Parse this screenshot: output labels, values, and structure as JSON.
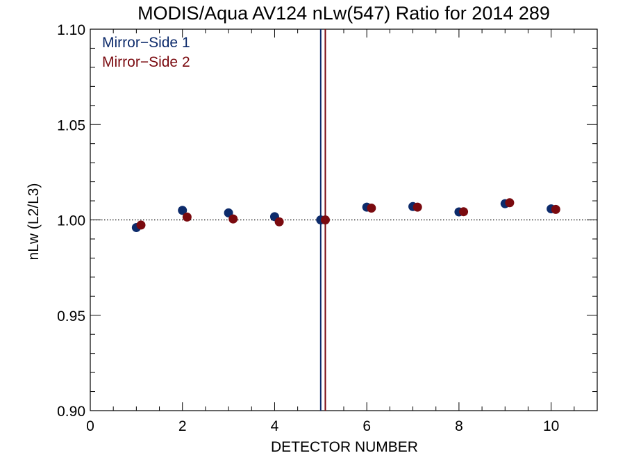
{
  "chart_data": {
    "type": "scatter",
    "title": "MODIS/Aqua AV124 nLw(547) Ratio for 2014 289",
    "xlabel": "DETECTOR NUMBER",
    "ylabel": "nLw (L2/L3)",
    "xlim": [
      0,
      11
    ],
    "ylim": [
      0.9,
      1.1
    ],
    "x_ticks": [
      0,
      2,
      4,
      6,
      8,
      10
    ],
    "x_tick_labels": [
      "0",
      "2",
      "4",
      "6",
      "8",
      "10"
    ],
    "y_ticks": [
      0.9,
      0.95,
      1.0,
      1.05,
      1.1
    ],
    "y_tick_labels": [
      "0.90",
      "0.95",
      "1.00",
      "1.05",
      "1.10"
    ],
    "grid": false,
    "legend_position": "top-left",
    "reference_line_y": 1.0,
    "series": [
      {
        "name": "Mirror−Side 1",
        "color": "#0d2b6b",
        "x": [
          1,
          2,
          3,
          4,
          5,
          6,
          7,
          8,
          9,
          10
        ],
        "y": [
          0.996,
          1.005,
          1.0037,
          1.0017,
          1.0,
          1.0067,
          1.007,
          1.0042,
          1.0085,
          1.0058
        ],
        "vertical_line_x": 5.0
      },
      {
        "name": "Mirror−Side 2",
        "color": "#7a0a0f",
        "x": [
          1.1,
          2.1,
          3.1,
          4.1,
          5.1,
          6.1,
          7.1,
          8.1,
          9.1,
          10.1
        ],
        "y": [
          0.9973,
          1.0015,
          1.0005,
          0.999,
          1.0,
          1.0062,
          1.0067,
          1.0043,
          1.009,
          1.0055
        ],
        "vertical_line_x": 5.1
      }
    ]
  }
}
